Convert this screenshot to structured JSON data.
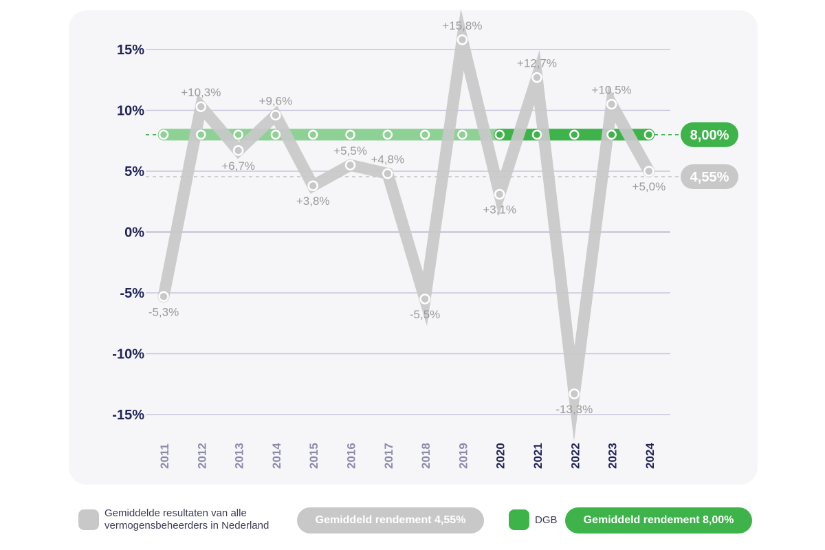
{
  "colors": {
    "market": "#c8c8c8",
    "dgb": "#3db34a",
    "dgb_light": "#8ed194",
    "grid": "#c7c6dc",
    "axis_text": "#1f2356",
    "year_text_muted": "#8a89aa",
    "label_text": "#9a9a9a"
  },
  "chart_data": {
    "type": "line",
    "categories": [
      "2011",
      "2012",
      "2013",
      "2014",
      "2015",
      "2016",
      "2017",
      "2018",
      "2019",
      "2020",
      "2021",
      "2022",
      "2023",
      "2024"
    ],
    "emphasized_categories": [
      "2020",
      "2021",
      "2022",
      "2023",
      "2024"
    ],
    "y_ticks": [
      15,
      10,
      5,
      0,
      -5,
      -10,
      -15
    ],
    "y_tick_labels": [
      "15%",
      "10%",
      "5%",
      "0%",
      "-5%",
      "-10%",
      "-15%"
    ],
    "ylim": [
      -15,
      15
    ],
    "grid": true,
    "series": [
      {
        "name": "Gemiddelde resultaten van alle vermogensbeheerders in Nederland",
        "values": [
          -5.3,
          10.3,
          6.7,
          9.6,
          3.8,
          5.5,
          4.8,
          -5.5,
          15.8,
          3.1,
          12.7,
          -13.3,
          10.5,
          5.0
        ],
        "labels": [
          "-5,3%",
          "+10,3%",
          "+6,7%",
          "+9,6%",
          "+3,8%",
          "+5,5%",
          "+4,8%",
          "-5,5%",
          "+15,8%",
          "+3,1%",
          "+12,7%",
          "-13,3%",
          "+10,5%",
          "+5,0%"
        ],
        "label_positions": [
          "below",
          "above",
          "below",
          "above",
          "below",
          "above",
          "above",
          "below",
          "above",
          "below",
          "above",
          "below",
          "above",
          "below"
        ]
      },
      {
        "name": "DGB",
        "values": [
          8.0,
          8.0,
          8.0,
          8.0,
          8.0,
          8.0,
          8.0,
          8.0,
          8.0,
          8.0,
          8.0,
          8.0,
          8.0,
          8.0
        ]
      }
    ],
    "reference_lines": [
      {
        "value": 8.0,
        "label": "8,00%",
        "series": "DGB"
      },
      {
        "value": 4.55,
        "label": "4,55%",
        "series": "market"
      }
    ]
  },
  "legend": {
    "market_label_line1": "Gemiddelde resultaten van alle",
    "market_label_line2": "vermogensbeheerders in Nederland",
    "market_avg_pill": "Gemiddeld rendement 4,55%",
    "dgb_label": "DGB",
    "dgb_avg_pill": "Gemiddeld rendement 8,00%"
  }
}
